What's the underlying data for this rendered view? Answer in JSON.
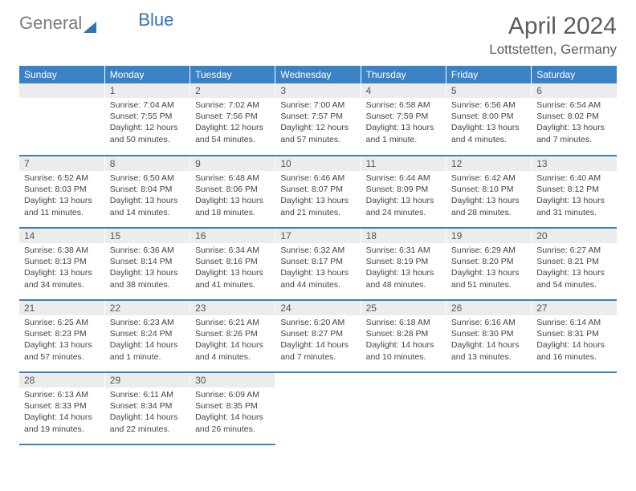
{
  "brand": {
    "part1": "General",
    "part2": "Blue"
  },
  "title": "April 2024",
  "location": "Lottstetten, Germany",
  "colors": {
    "header_bg": "#3a82c4",
    "header_text": "#ffffff",
    "dayhead_bg": "#ececec",
    "dayhead_text": "#555555",
    "divider": "#3a82c4",
    "body_text": "#444444",
    "title_color": "#5c5c5c",
    "brand_gray": "#7a7a7a",
    "brand_blue": "#2f74b5",
    "page_bg": "#ffffff"
  },
  "typography": {
    "title_fontsize": 30,
    "subtitle_fontsize": 17,
    "dayhead_fontsize": 12,
    "body_fontsize": 10.5,
    "font_family": "Arial"
  },
  "dayHeaders": [
    "Sunday",
    "Monday",
    "Tuesday",
    "Wednesday",
    "Thursday",
    "Friday",
    "Saturday"
  ],
  "weeks": [
    [
      null,
      {
        "n": "1",
        "sr": "Sunrise: 7:04 AM",
        "ss": "Sunset: 7:55 PM",
        "dl": "Daylight: 12 hours and 50 minutes."
      },
      {
        "n": "2",
        "sr": "Sunrise: 7:02 AM",
        "ss": "Sunset: 7:56 PM",
        "dl": "Daylight: 12 hours and 54 minutes."
      },
      {
        "n": "3",
        "sr": "Sunrise: 7:00 AM",
        "ss": "Sunset: 7:57 PM",
        "dl": "Daylight: 12 hours and 57 minutes."
      },
      {
        "n": "4",
        "sr": "Sunrise: 6:58 AM",
        "ss": "Sunset: 7:59 PM",
        "dl": "Daylight: 13 hours and 1 minute."
      },
      {
        "n": "5",
        "sr": "Sunrise: 6:56 AM",
        "ss": "Sunset: 8:00 PM",
        "dl": "Daylight: 13 hours and 4 minutes."
      },
      {
        "n": "6",
        "sr": "Sunrise: 6:54 AM",
        "ss": "Sunset: 8:02 PM",
        "dl": "Daylight: 13 hours and 7 minutes."
      }
    ],
    [
      {
        "n": "7",
        "sr": "Sunrise: 6:52 AM",
        "ss": "Sunset: 8:03 PM",
        "dl": "Daylight: 13 hours and 11 minutes."
      },
      {
        "n": "8",
        "sr": "Sunrise: 6:50 AM",
        "ss": "Sunset: 8:04 PM",
        "dl": "Daylight: 13 hours and 14 minutes."
      },
      {
        "n": "9",
        "sr": "Sunrise: 6:48 AM",
        "ss": "Sunset: 8:06 PM",
        "dl": "Daylight: 13 hours and 18 minutes."
      },
      {
        "n": "10",
        "sr": "Sunrise: 6:46 AM",
        "ss": "Sunset: 8:07 PM",
        "dl": "Daylight: 13 hours and 21 minutes."
      },
      {
        "n": "11",
        "sr": "Sunrise: 6:44 AM",
        "ss": "Sunset: 8:09 PM",
        "dl": "Daylight: 13 hours and 24 minutes."
      },
      {
        "n": "12",
        "sr": "Sunrise: 6:42 AM",
        "ss": "Sunset: 8:10 PM",
        "dl": "Daylight: 13 hours and 28 minutes."
      },
      {
        "n": "13",
        "sr": "Sunrise: 6:40 AM",
        "ss": "Sunset: 8:12 PM",
        "dl": "Daylight: 13 hours and 31 minutes."
      }
    ],
    [
      {
        "n": "14",
        "sr": "Sunrise: 6:38 AM",
        "ss": "Sunset: 8:13 PM",
        "dl": "Daylight: 13 hours and 34 minutes."
      },
      {
        "n": "15",
        "sr": "Sunrise: 6:36 AM",
        "ss": "Sunset: 8:14 PM",
        "dl": "Daylight: 13 hours and 38 minutes."
      },
      {
        "n": "16",
        "sr": "Sunrise: 6:34 AM",
        "ss": "Sunset: 8:16 PM",
        "dl": "Daylight: 13 hours and 41 minutes."
      },
      {
        "n": "17",
        "sr": "Sunrise: 6:32 AM",
        "ss": "Sunset: 8:17 PM",
        "dl": "Daylight: 13 hours and 44 minutes."
      },
      {
        "n": "18",
        "sr": "Sunrise: 6:31 AM",
        "ss": "Sunset: 8:19 PM",
        "dl": "Daylight: 13 hours and 48 minutes."
      },
      {
        "n": "19",
        "sr": "Sunrise: 6:29 AM",
        "ss": "Sunset: 8:20 PM",
        "dl": "Daylight: 13 hours and 51 minutes."
      },
      {
        "n": "20",
        "sr": "Sunrise: 6:27 AM",
        "ss": "Sunset: 8:21 PM",
        "dl": "Daylight: 13 hours and 54 minutes."
      }
    ],
    [
      {
        "n": "21",
        "sr": "Sunrise: 6:25 AM",
        "ss": "Sunset: 8:23 PM",
        "dl": "Daylight: 13 hours and 57 minutes."
      },
      {
        "n": "22",
        "sr": "Sunrise: 6:23 AM",
        "ss": "Sunset: 8:24 PM",
        "dl": "Daylight: 14 hours and 1 minute."
      },
      {
        "n": "23",
        "sr": "Sunrise: 6:21 AM",
        "ss": "Sunset: 8:26 PM",
        "dl": "Daylight: 14 hours and 4 minutes."
      },
      {
        "n": "24",
        "sr": "Sunrise: 6:20 AM",
        "ss": "Sunset: 8:27 PM",
        "dl": "Daylight: 14 hours and 7 minutes."
      },
      {
        "n": "25",
        "sr": "Sunrise: 6:18 AM",
        "ss": "Sunset: 8:28 PM",
        "dl": "Daylight: 14 hours and 10 minutes."
      },
      {
        "n": "26",
        "sr": "Sunrise: 6:16 AM",
        "ss": "Sunset: 8:30 PM",
        "dl": "Daylight: 14 hours and 13 minutes."
      },
      {
        "n": "27",
        "sr": "Sunrise: 6:14 AM",
        "ss": "Sunset: 8:31 PM",
        "dl": "Daylight: 14 hours and 16 minutes."
      }
    ],
    [
      {
        "n": "28",
        "sr": "Sunrise: 6:13 AM",
        "ss": "Sunset: 8:33 PM",
        "dl": "Daylight: 14 hours and 19 minutes."
      },
      {
        "n": "29",
        "sr": "Sunrise: 6:11 AM",
        "ss": "Sunset: 8:34 PM",
        "dl": "Daylight: 14 hours and 22 minutes."
      },
      {
        "n": "30",
        "sr": "Sunrise: 6:09 AM",
        "ss": "Sunset: 8:35 PM",
        "dl": "Daylight: 14 hours and 26 minutes."
      },
      null,
      null,
      null,
      null
    ]
  ]
}
